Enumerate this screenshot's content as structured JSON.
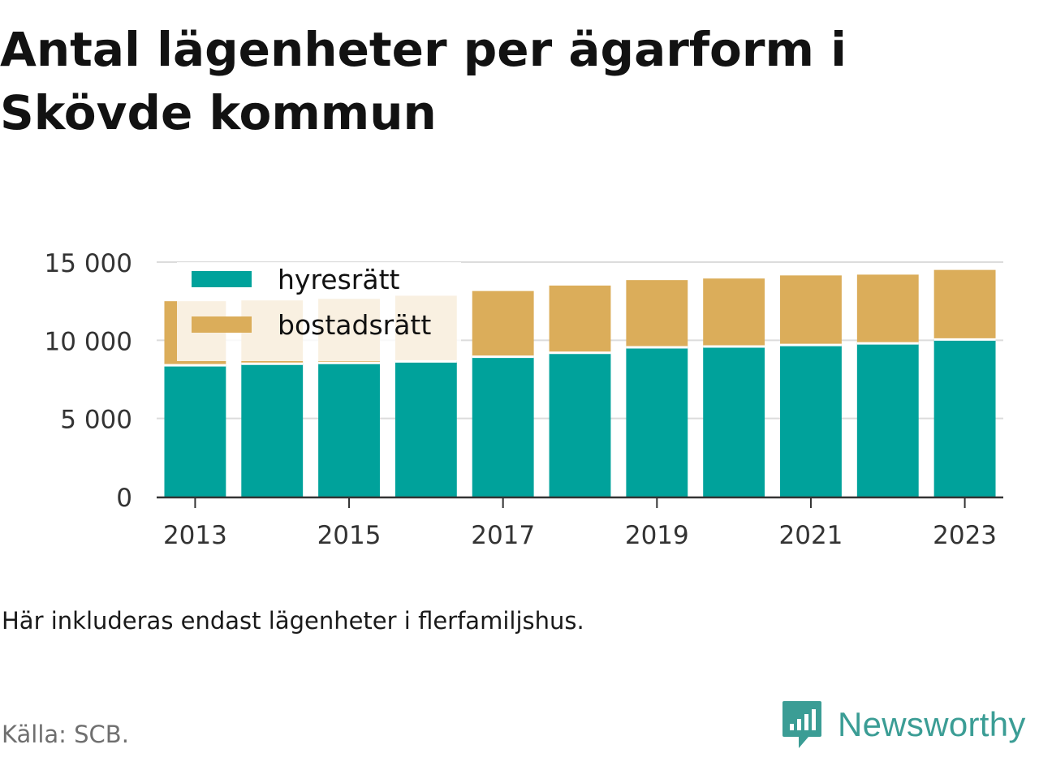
{
  "title": "Antal lägenheter per ägarform i Skövde kommun",
  "note": "Här inkluderas endast lägenheter i flerfamiljshus.",
  "source": "Källa: SCB.",
  "brand": {
    "name": "Newsworthy",
    "icon": "newsworthy-logo-icon",
    "color": "#3b9d95"
  },
  "chart_data": {
    "type": "bar",
    "stacked": true,
    "categories": [
      "2013",
      "2014",
      "2015",
      "2016",
      "2017",
      "2018",
      "2019",
      "2020",
      "2021",
      "2022",
      "2023"
    ],
    "x_tick_labels": [
      "2013",
      "2015",
      "2017",
      "2019",
      "2021",
      "2023"
    ],
    "y_tick_labels": [
      "0",
      "5 000",
      "10 000",
      "15 000"
    ],
    "y_ticks": [
      0,
      5000,
      10000,
      15000
    ],
    "ylim": [
      0,
      15500
    ],
    "grid": "horizontal",
    "legend_position": "top-left",
    "series": [
      {
        "name": "hyresrätt",
        "color": "#00a29b",
        "values": [
          8400,
          8500,
          8550,
          8650,
          8950,
          9200,
          9550,
          9600,
          9700,
          9800,
          10050
        ]
      },
      {
        "name": "bostadsrätt",
        "color": "#dbad5a",
        "values": [
          4100,
          4050,
          4100,
          4200,
          4200,
          4300,
          4300,
          4350,
          4450,
          4400,
          4450
        ]
      }
    ]
  }
}
